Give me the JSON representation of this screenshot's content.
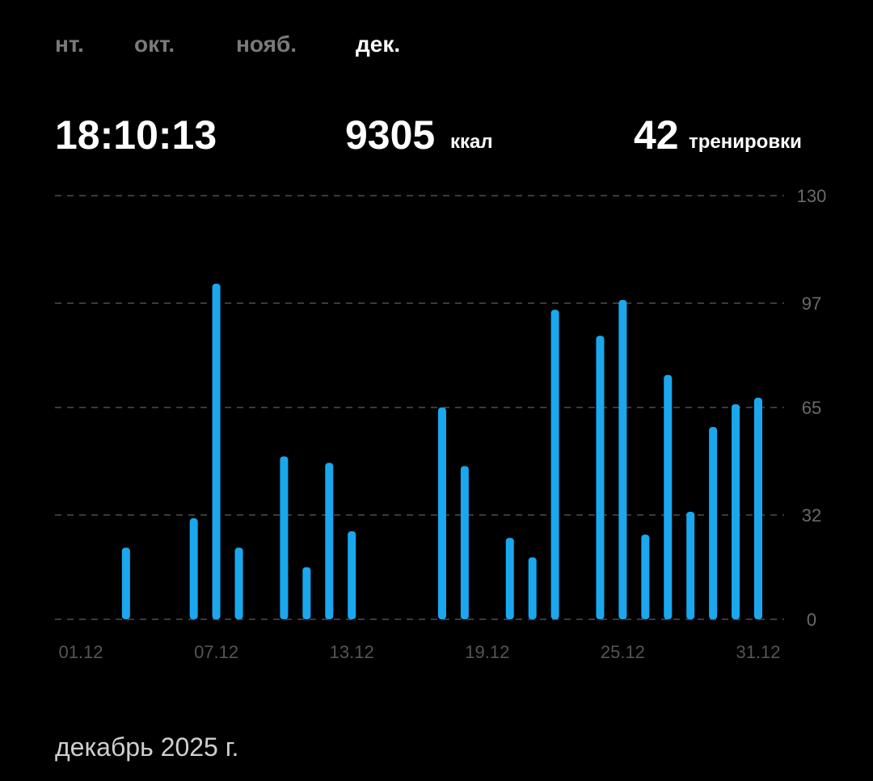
{
  "tabs": [
    "нт.",
    "окт.",
    "нояб.",
    "дек."
  ],
  "stats": {
    "time": "18:10:13",
    "calories": "9305",
    "calories_unit": "ккал",
    "workouts": "42",
    "workouts_unit": "тренировки"
  },
  "chart_data": {
    "type": "bar",
    "categories": [
      "01.12",
      null,
      null,
      null,
      null,
      null,
      "07.12",
      null,
      null,
      null,
      null,
      null,
      "13.12",
      null,
      null,
      null,
      null,
      null,
      "19.12",
      null,
      null,
      null,
      null,
      null,
      "25.12",
      null,
      null,
      null,
      null,
      null,
      "31.12"
    ],
    "values": [
      null,
      null,
      22,
      null,
      null,
      31,
      103,
      22,
      null,
      50,
      16,
      48,
      27,
      null,
      null,
      null,
      65,
      47,
      null,
      25,
      19,
      95,
      null,
      87,
      98,
      26,
      75,
      33,
      59,
      66,
      68
    ],
    "color": "#1aa7ee",
    "ylim": [
      0,
      130
    ],
    "yticks": [
      0,
      32,
      65,
      97,
      130
    ],
    "grid": true
  },
  "footer": "декабрь 2025 г."
}
